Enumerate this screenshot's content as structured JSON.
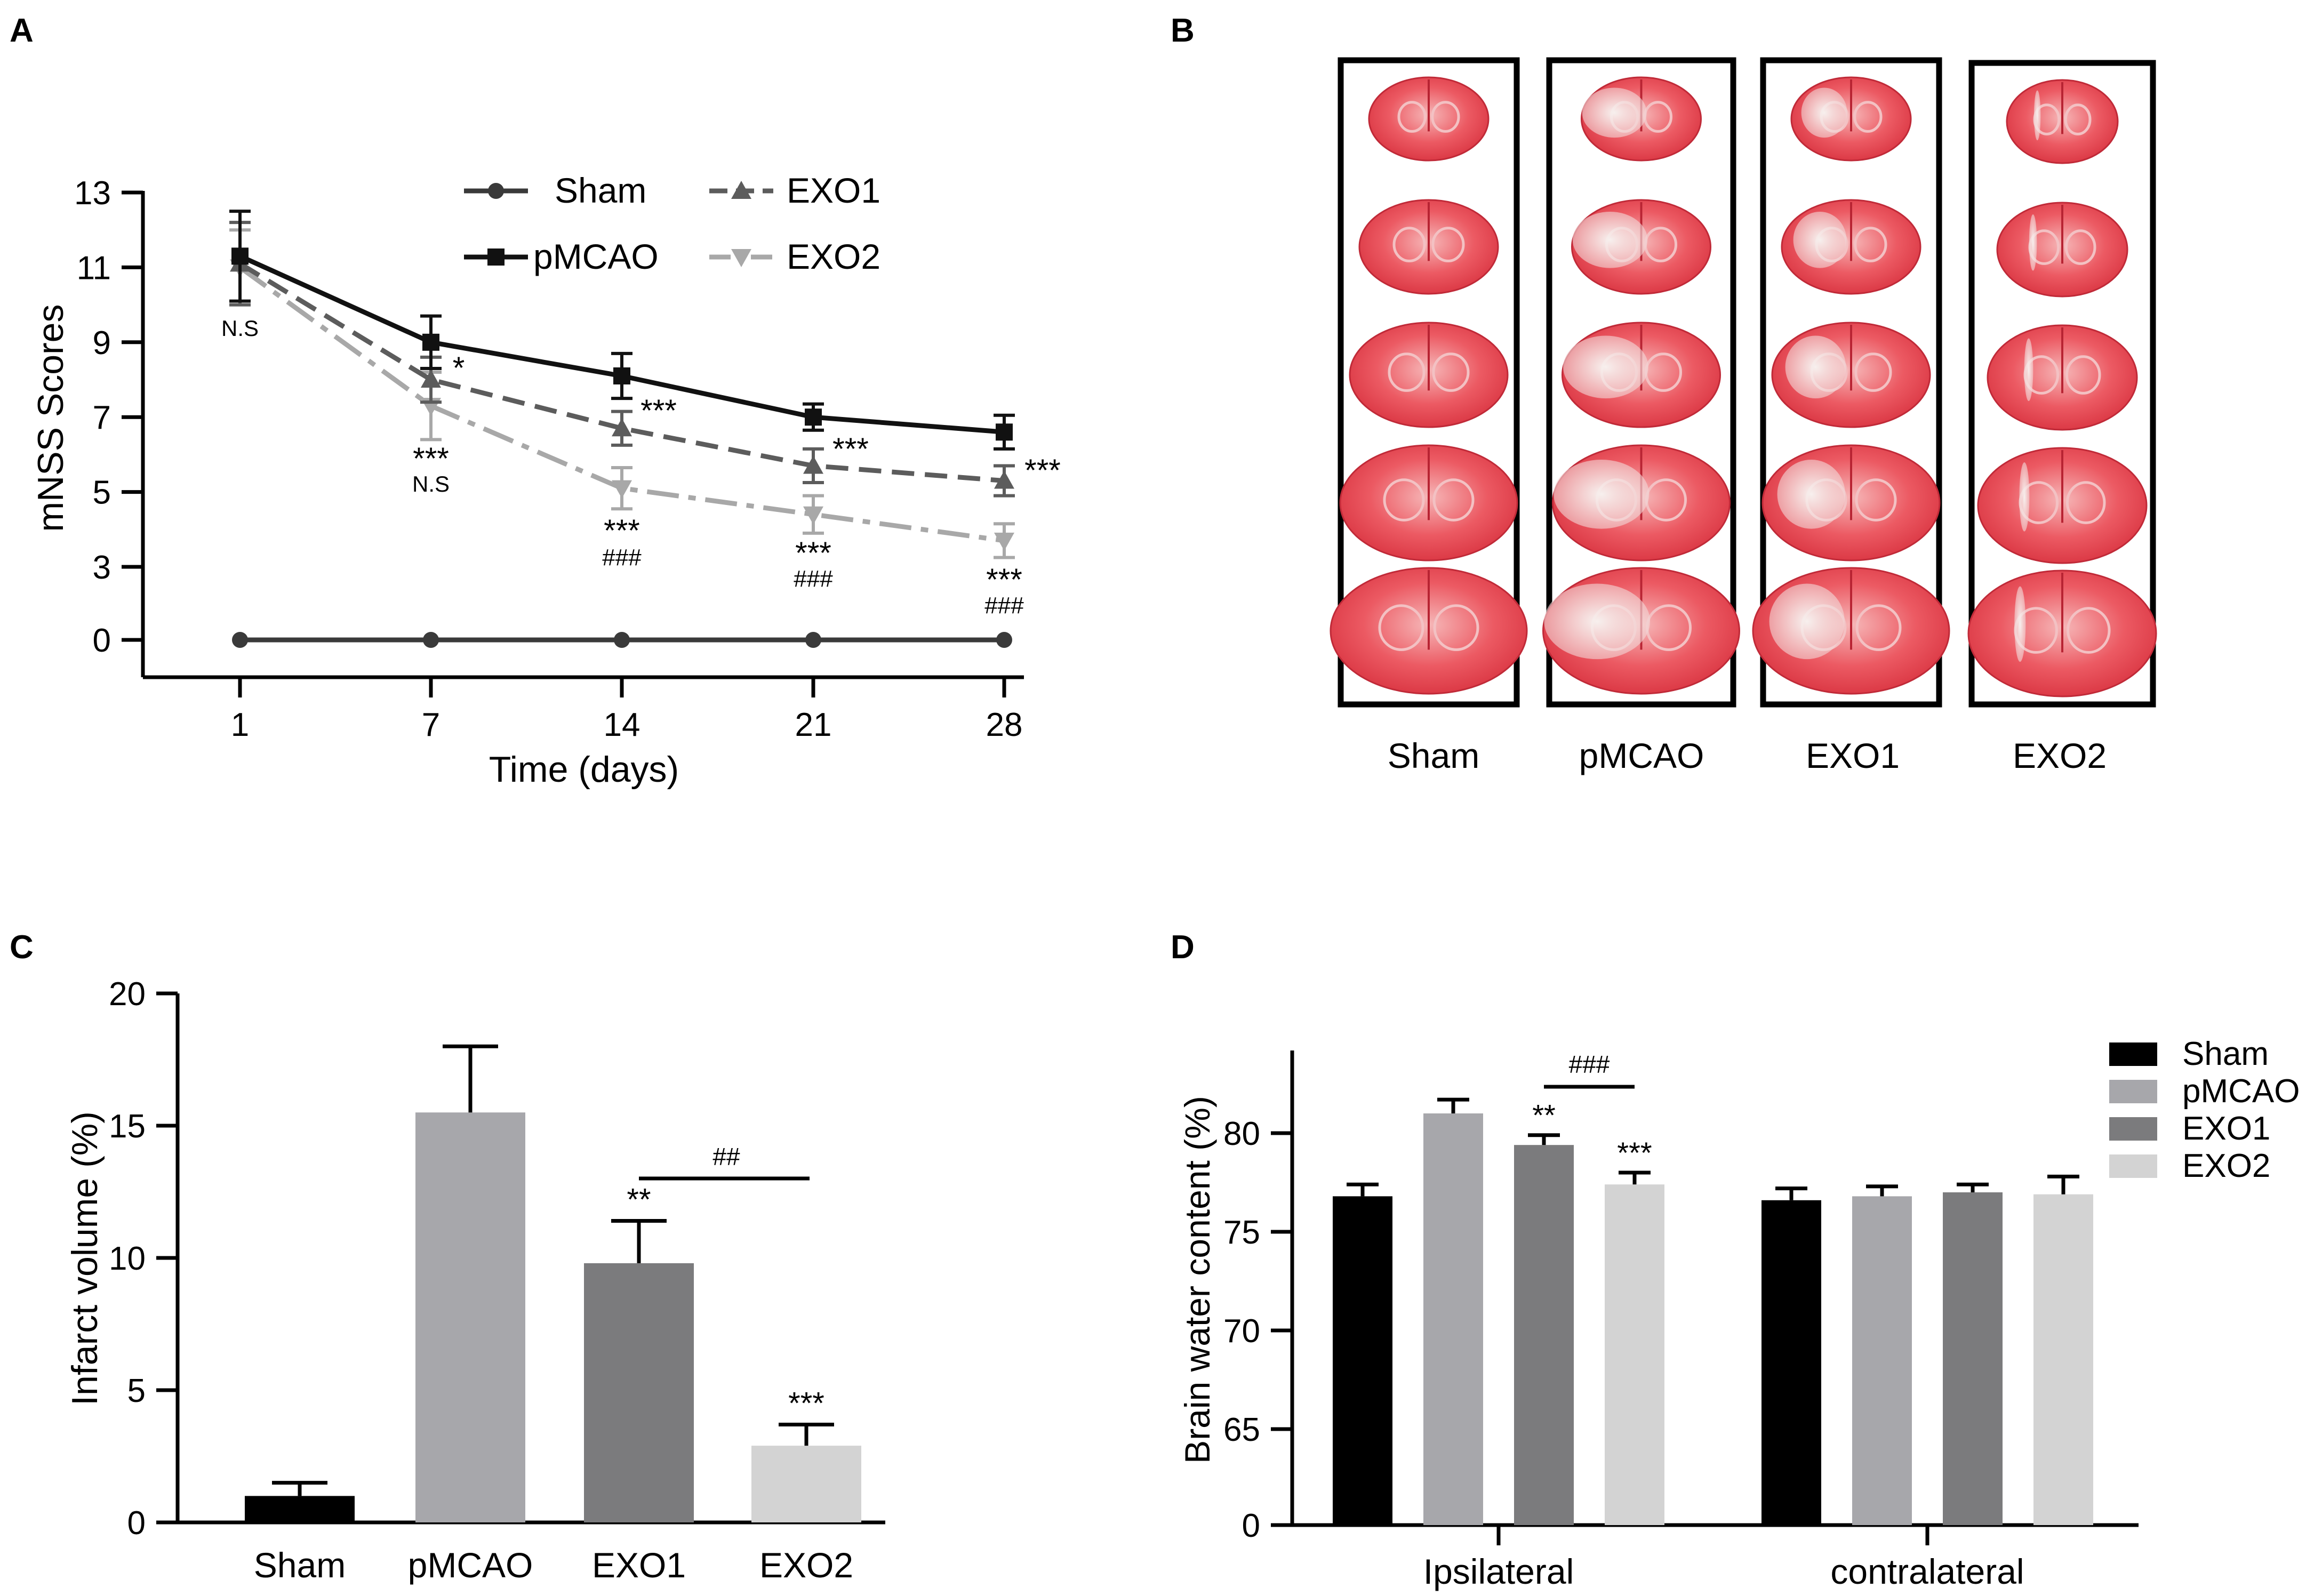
{
  "panel_labels": {
    "a": "A",
    "b": "B",
    "c": "C",
    "d": "D"
  },
  "chart_data": [
    {
      "id": "A",
      "type": "line",
      "title": "",
      "xlabel": "Time (days)",
      "ylabel": "mNSS Scores",
      "x": [
        1,
        7,
        14,
        21,
        28
      ],
      "x_tick_labels": [
        "1",
        "7",
        "14",
        "21",
        "28"
      ],
      "y_ticks": [
        0,
        3,
        5,
        7,
        9,
        11,
        13
      ],
      "y_tick_labels": [
        "0",
        "3",
        "5",
        "7",
        "9",
        "11",
        "13"
      ],
      "ylim_note": "y axis is broken between 0 and 3",
      "series": [
        {
          "name": "Sham",
          "values": [
            0,
            0,
            0,
            0,
            0
          ],
          "errors": [
            0,
            0,
            0,
            0,
            0
          ],
          "color": "#3a3a3a",
          "marker": "circle",
          "dash": "solid"
        },
        {
          "name": "pMCAO",
          "values": [
            11.3,
            9.0,
            8.1,
            7.0,
            6.6
          ],
          "errors": [
            1.2,
            0.7,
            0.6,
            0.35,
            0.45
          ],
          "color": "#111111",
          "marker": "square",
          "dash": "solid"
        },
        {
          "name": "EXO1",
          "values": [
            11.1,
            8.0,
            6.7,
            5.7,
            5.3
          ],
          "errors": [
            1.1,
            0.6,
            0.45,
            0.45,
            0.4
          ],
          "color": "#5c5c5c",
          "marker": "triangle-up",
          "dash": "dashed"
        },
        {
          "name": "EXO2",
          "values": [
            11.0,
            7.3,
            5.1,
            4.4,
            3.7
          ],
          "errors": [
            1.0,
            0.9,
            0.55,
            0.5,
            0.45
          ],
          "color": "#a8a8a8",
          "marker": "triangle-down",
          "dash": "dashdot"
        }
      ],
      "legend": [
        "Sham",
        "pMCAO",
        "EXO1",
        "EXO2"
      ],
      "annotations": {
        "ns_day1": "N.S",
        "exo1_day7": "*",
        "exo2_day7": "***",
        "exo2_day7_ns": "N.S",
        "exo1_day14": "***",
        "exo2_day14": "***",
        "exo2_day14_hash": "###",
        "exo1_day21": "***",
        "exo2_day21": "***",
        "exo2_day21_hash": "###",
        "exo1_day28": "***",
        "exo2_day28": "***",
        "exo2_day28_hash": "###"
      }
    },
    {
      "id": "B",
      "type": "image-grid",
      "description_groups": [
        "Sham",
        "pMCAO",
        "EXO1",
        "EXO2"
      ],
      "slices_per_group": 5
    },
    {
      "id": "C",
      "type": "bar",
      "title": "",
      "xlabel": "",
      "ylabel": "Infarct volume (%)",
      "categories": [
        "Sham",
        "pMCAO",
        "EXO1",
        "EXO2"
      ],
      "values": [
        1.0,
        15.5,
        9.8,
        2.9
      ],
      "errors": [
        0.5,
        2.5,
        1.6,
        0.8
      ],
      "colors": [
        "#000000",
        "#a7a7ab",
        "#7b7b7d",
        "#d3d3d3"
      ],
      "ylim": [
        0,
        20
      ],
      "y_ticks": [
        0,
        5,
        10,
        15,
        20
      ],
      "y_tick_labels": [
        "0",
        "5",
        "10",
        "15",
        "20"
      ],
      "annotations": {
        "exo1": "**",
        "exo2": "***",
        "bracket": "##"
      }
    },
    {
      "id": "D",
      "type": "bar",
      "title": "",
      "xlabel": "",
      "ylabel": "Brain water content (%)",
      "categories": [
        "Ipsilateral",
        "contralateral"
      ],
      "series": [
        {
          "name": "Sham",
          "values": [
            76.8,
            76.6
          ],
          "errors": [
            0.6,
            0.6
          ],
          "color": "#000000"
        },
        {
          "name": "pMCAO",
          "values": [
            81.0,
            76.8
          ],
          "errors": [
            0.7,
            0.5
          ],
          "color": "#a7a7ab"
        },
        {
          "name": "EXO1",
          "values": [
            79.4,
            77.0
          ],
          "errors": [
            0.5,
            0.4
          ],
          "color": "#7b7b7d"
        },
        {
          "name": "EXO2",
          "values": [
            77.4,
            76.9
          ],
          "errors": [
            0.6,
            0.9
          ],
          "color": "#d3d3d3"
        }
      ],
      "legend": [
        "Sham",
        "pMCAO",
        "EXO1",
        "EXO2"
      ],
      "y_ticks": [
        0,
        65,
        70,
        75,
        80
      ],
      "y_tick_labels": [
        "0",
        "65",
        "70",
        "75",
        "80"
      ],
      "ylim_note": "y axis is broken between 0 and 65",
      "annotations": {
        "exo1_ips": "**",
        "exo2_ips": "***",
        "bracket": "###"
      }
    }
  ]
}
